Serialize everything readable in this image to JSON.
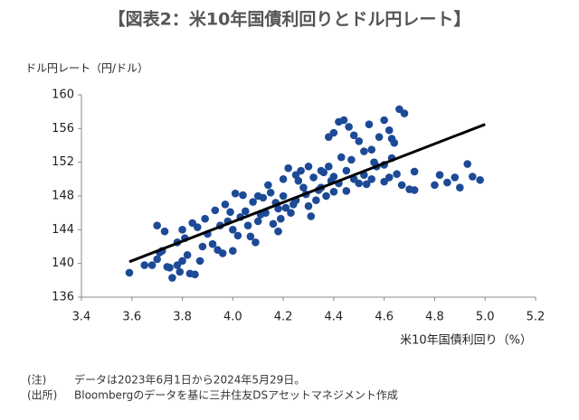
{
  "chart_data": {
    "type": "scatter",
    "title": "【図表2：米10年国債利回りとドル円レート】",
    "y_label": "ドル円レート（円/ドル）",
    "x_label": "米10年国債利回り（%）",
    "notes": [
      [
        "(注)",
        "データは2023年6月1日から2024年5月29日。"
      ],
      [
        "(出所)",
        "Bloombergのデータを基に三井住友DSアセットマネジメント作成"
      ]
    ],
    "color": "#1d4a97",
    "x": [
      3.59,
      3.68,
      3.7,
      3.72,
      3.7,
      3.73,
      3.75,
      3.76,
      3.78,
      3.8,
      3.78,
      3.8,
      3.82,
      3.83,
      3.85,
      3.84,
      3.86,
      3.87,
      3.88,
      3.9,
      3.92,
      3.93,
      3.95,
      3.96,
      3.98,
      3.97,
      4.0,
      4.0,
      4.02,
      4.03,
      4.05,
      4.06,
      4.08,
      4.07,
      4.1,
      4.1,
      4.12,
      4.13,
      4.15,
      4.16,
      4.18,
      4.18,
      4.2,
      4.2,
      4.22,
      4.23,
      4.25,
      4.25,
      4.27,
      4.28,
      4.3,
      4.3,
      4.32,
      4.33,
      4.35,
      4.35,
      4.37,
      4.38,
      4.4,
      4.4,
      4.42,
      4.45,
      4.45,
      4.48,
      4.38,
      4.4,
      4.42,
      4.44,
      4.46,
      4.48,
      4.5,
      4.52,
      4.55,
      4.58,
      4.6,
      4.62,
      4.64,
      4.66,
      4.68,
      4.5,
      4.52,
      4.55,
      4.57,
      4.6,
      4.62,
      4.65,
      4.67,
      4.7,
      4.72,
      4.8,
      4.82,
      4.85,
      4.88,
      4.9,
      4.93,
      4.95,
      4.98,
      3.65,
      3.71,
      3.74,
      3.79,
      3.81,
      3.89,
      3.94,
      3.99,
      4.01,
      4.04,
      4.09,
      4.11,
      4.14,
      4.17,
      4.19,
      4.21,
      4.24,
      4.26,
      4.29,
      4.31,
      4.34,
      4.36,
      4.39,
      4.43,
      4.47,
      4.53,
      4.56,
      4.6,
      4.63,
      4.72,
      4.54,
      4.63
    ],
    "y": [
      138.9,
      139.8,
      140.5,
      141.5,
      144.5,
      143.8,
      139.5,
      138.3,
      139.8,
      140.3,
      142.5,
      144.0,
      141.0,
      138.8,
      138.7,
      144.8,
      144.3,
      140.3,
      142.0,
      143.5,
      142.3,
      146.3,
      144.5,
      141.2,
      145.0,
      147.0,
      144.0,
      141.5,
      143.3,
      145.5,
      146.2,
      144.5,
      147.3,
      143.2,
      145.0,
      148.0,
      147.8,
      146.0,
      148.4,
      144.7,
      146.5,
      143.8,
      148.0,
      150.0,
      151.3,
      146.0,
      147.5,
      150.5,
      151.0,
      149.0,
      146.8,
      151.5,
      150.2,
      147.5,
      151.0,
      149.0,
      148.0,
      151.5,
      148.5,
      150.3,
      149.5,
      148.6,
      151.0,
      150.0,
      155.0,
      155.5,
      156.8,
      157.0,
      156.2,
      155.2,
      154.5,
      153.3,
      153.5,
      155.0,
      157.0,
      155.8,
      154.3,
      158.3,
      157.8,
      149.5,
      150.5,
      150.0,
      151.5,
      149.7,
      150.2,
      150.6,
      149.3,
      148.8,
      150.9,
      149.3,
      150.5,
      149.6,
      150.2,
      149.0,
      151.8,
      150.3,
      149.9,
      139.8,
      141.3,
      139.6,
      139.0,
      143.0,
      145.3,
      141.6,
      146.1,
      148.3,
      148.1,
      142.5,
      145.8,
      149.3,
      147.2,
      145.3,
      146.6,
      147.0,
      149.8,
      148.2,
      145.6,
      148.7,
      150.8,
      149.8,
      152.6,
      152.3,
      149.4,
      152.0,
      151.7,
      152.5,
      148.7,
      156.5,
      154.8
    ],
    "trendline": {
      "x": [
        3.59,
        5.0
      ],
      "y": [
        140.2,
        156.5
      ],
      "color": "#000000"
    },
    "xlim": [
      3.4,
      5.2
    ],
    "xticks": [
      3.4,
      3.6,
      3.8,
      {
        "value": 4,
        "label": "4.0"
      },
      4.2,
      4.4,
      4.6,
      4.8,
      {
        "value": 5,
        "label": "5.0"
      },
      5.2
    ],
    "ylim": [
      136,
      160
    ],
    "yticks": [
      136,
      140,
      144,
      148,
      152,
      156,
      160
    ]
  }
}
